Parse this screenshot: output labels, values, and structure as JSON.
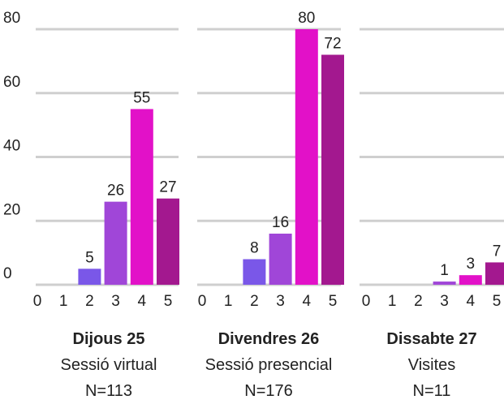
{
  "chart_data": {
    "type": "bar",
    "ylim": [
      0,
      80
    ],
    "yticks": [
      0,
      20,
      40,
      60,
      80
    ],
    "categories": [
      "0",
      "1",
      "2",
      "3",
      "4",
      "5"
    ],
    "grid": true,
    "colors": [
      "#7a57e8",
      "#7a57e8",
      "#7a57e8",
      "#a046d8",
      "#e211c8",
      "#a3188f"
    ],
    "panels": [
      {
        "title": "Dijous 25",
        "subtitle": "Sessió virtual",
        "n": "N=113",
        "values": [
          0,
          0,
          5,
          26,
          55,
          27
        ]
      },
      {
        "title": "Divendres 26",
        "subtitle": "Sessió presencial",
        "n": "N=176",
        "values": [
          0,
          0,
          8,
          16,
          80,
          72
        ]
      },
      {
        "title": "Dissabte 27",
        "subtitle": "Visites",
        "n": "N=11",
        "values": [
          0,
          0,
          0,
          1,
          3,
          7
        ]
      }
    ]
  }
}
